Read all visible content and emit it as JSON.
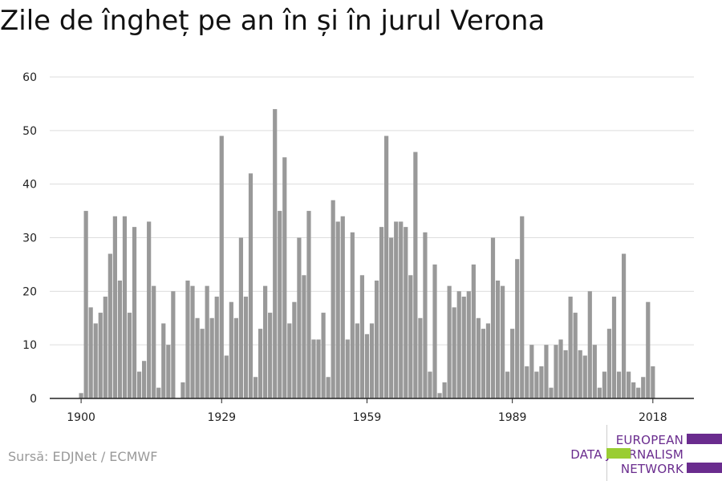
{
  "chart_data": {
    "type": "bar",
    "title": "Zile de îngheț pe an în și în jurul Verona",
    "xlabel": "",
    "ylabel": "",
    "ylim": [
      0,
      60
    ],
    "yticks": [
      0,
      10,
      20,
      30,
      40,
      50,
      60
    ],
    "xticks": [
      1900,
      1929,
      1959,
      1989,
      2018
    ],
    "grid": true,
    "x": [
      1900,
      1901,
      1902,
      1903,
      1904,
      1905,
      1906,
      1907,
      1908,
      1909,
      1910,
      1911,
      1912,
      1913,
      1914,
      1915,
      1916,
      1917,
      1918,
      1919,
      1920,
      1921,
      1922,
      1923,
      1924,
      1925,
      1926,
      1927,
      1928,
      1929,
      1930,
      1931,
      1932,
      1933,
      1934,
      1935,
      1936,
      1937,
      1938,
      1939,
      1940,
      1941,
      1942,
      1943,
      1944,
      1945,
      1946,
      1947,
      1948,
      1949,
      1950,
      1951,
      1952,
      1953,
      1954,
      1955,
      1956,
      1957,
      1958,
      1959,
      1960,
      1961,
      1962,
      1963,
      1964,
      1965,
      1966,
      1967,
      1968,
      1969,
      1970,
      1971,
      1972,
      1973,
      1974,
      1975,
      1976,
      1977,
      1978,
      1979,
      1980,
      1981,
      1982,
      1983,
      1984,
      1985,
      1986,
      1987,
      1988,
      1989,
      1990,
      1991,
      1992,
      1993,
      1994,
      1995,
      1996,
      1997,
      1998,
      1999,
      2000,
      2001,
      2002,
      2003,
      2004,
      2005,
      2006,
      2007,
      2008,
      2009,
      2010,
      2011,
      2012,
      2013,
      2014,
      2015,
      2016,
      2017,
      2018,
      2019
    ],
    "values": [
      1,
      35,
      17,
      14,
      16,
      19,
      27,
      34,
      22,
      34,
      16,
      32,
      5,
      7,
      33,
      21,
      2,
      14,
      10,
      20,
      0,
      3,
      22,
      21,
      15,
      13,
      21,
      15,
      19,
      49,
      8,
      18,
      15,
      30,
      19,
      42,
      4,
      13,
      21,
      16,
      54,
      35,
      45,
      14,
      18,
      30,
      23,
      35,
      11,
      11,
      16,
      4,
      37,
      33,
      34,
      11,
      31,
      14,
      23,
      12,
      14,
      22,
      32,
      49,
      30,
      33,
      33,
      32,
      23,
      46,
      15,
      31,
      5,
      25,
      1,
      3,
      21,
      17,
      20,
      19,
      20,
      25,
      15,
      13,
      14,
      30,
      22,
      21,
      5,
      13,
      26,
      34,
      6,
      10,
      5,
      6,
      10,
      2,
      10,
      11,
      9,
      19,
      16,
      9,
      8,
      20,
      10,
      2,
      5,
      13,
      19,
      5,
      27,
      5,
      3,
      2,
      4,
      18,
      6,
      0
    ],
    "bar_color": "#999999",
    "grid_color": "#dddddd"
  },
  "source": "Sursă: EDJNet / ECMWF",
  "logo": {
    "line1": "EUROPEAN",
    "line2": "DATA JOURNALISM",
    "line3": "NETWORK",
    "purple": "#6a2c8e",
    "green": "#9acd32"
  }
}
